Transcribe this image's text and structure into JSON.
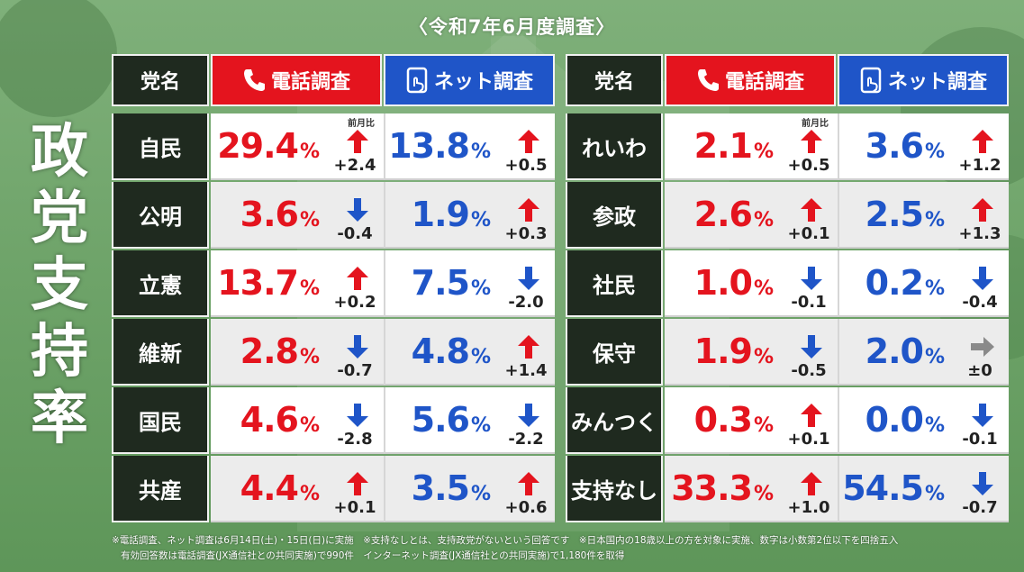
{
  "survey_title": "〈令和7年6月度調査〉",
  "main_title": [
    "政",
    "党",
    "支",
    "持",
    "率"
  ],
  "headers": {
    "party": "党名",
    "phone": "電話調査",
    "net": "ネット調査"
  },
  "prev_month_label": "前月比",
  "colors": {
    "red": "#e4141e",
    "blue": "#1f55c8",
    "dark": "#1f2a1f",
    "gray_arrow": "#8a8a8a"
  },
  "left_table": [
    {
      "party": "自民",
      "phone": {
        "value": "29.4",
        "dir": "up",
        "change": "+2.4"
      },
      "net": {
        "value": "13.8",
        "dir": "up",
        "change": "+0.5"
      }
    },
    {
      "party": "公明",
      "phone": {
        "value": "3.6",
        "dir": "down",
        "change": "-0.4"
      },
      "net": {
        "value": "1.9",
        "dir": "up",
        "change": "+0.3"
      }
    },
    {
      "party": "立憲",
      "phone": {
        "value": "13.7",
        "dir": "up",
        "change": "+0.2"
      },
      "net": {
        "value": "7.5",
        "dir": "down",
        "change": "-2.0"
      }
    },
    {
      "party": "維新",
      "phone": {
        "value": "2.8",
        "dir": "down",
        "change": "-0.7"
      },
      "net": {
        "value": "4.8",
        "dir": "up",
        "change": "+1.4"
      }
    },
    {
      "party": "国民",
      "phone": {
        "value": "4.6",
        "dir": "down",
        "change": "-2.8"
      },
      "net": {
        "value": "5.6",
        "dir": "down",
        "change": "-2.2"
      }
    },
    {
      "party": "共産",
      "phone": {
        "value": "4.4",
        "dir": "up",
        "change": "+0.1"
      },
      "net": {
        "value": "3.5",
        "dir": "up",
        "change": "+0.6"
      }
    }
  ],
  "right_table": [
    {
      "party": "れいわ",
      "phone": {
        "value": "2.1",
        "dir": "up",
        "change": "+0.5"
      },
      "net": {
        "value": "3.6",
        "dir": "up",
        "change": "+1.2"
      }
    },
    {
      "party": "参政",
      "phone": {
        "value": "2.6",
        "dir": "up",
        "change": "+0.1"
      },
      "net": {
        "value": "2.5",
        "dir": "up",
        "change": "+1.3"
      }
    },
    {
      "party": "社民",
      "phone": {
        "value": "1.0",
        "dir": "down",
        "change": "-0.1"
      },
      "net": {
        "value": "0.2",
        "dir": "down",
        "change": "-0.4"
      }
    },
    {
      "party": "保守",
      "phone": {
        "value": "1.9",
        "dir": "down",
        "change": "-0.5"
      },
      "net": {
        "value": "2.0",
        "dir": "flat",
        "change": "±0"
      }
    },
    {
      "party": "みんつく",
      "phone": {
        "value": "0.3",
        "dir": "up",
        "change": "+0.1"
      },
      "net": {
        "value": "0.0",
        "dir": "down",
        "change": "-0.1"
      }
    },
    {
      "party": "支持なし",
      "phone": {
        "value": "33.3",
        "dir": "up",
        "change": "+1.0"
      },
      "net": {
        "value": "54.5",
        "dir": "down",
        "change": "-0.7"
      }
    }
  ],
  "pct_symbol": "%",
  "notes": [
    "※電話調査、ネット調査は6月14日(土)・15日(日)に実施　※支持なしとは、支持政党がないという回答です　※日本国内の18歳以上の方を対象に実施、数字は小数第2位以下を四捨五入",
    "有効回答数は電話調査(JX通信社との共同実施)で990件　インターネット調査(JX通信社との共同実施)で1,180件を取得"
  ]
}
